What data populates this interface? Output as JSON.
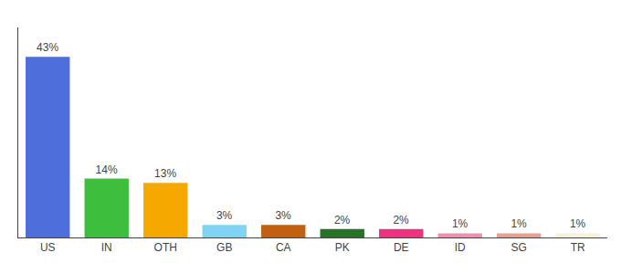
{
  "chart_data": {
    "type": "bar",
    "categories": [
      "US",
      "IN",
      "OTH",
      "GB",
      "CA",
      "PK",
      "DE",
      "ID",
      "SG",
      "TR"
    ],
    "values": [
      43,
      14,
      13,
      3,
      3,
      2,
      2,
      1,
      1,
      1
    ],
    "value_labels": [
      "43%",
      "14%",
      "13%",
      "3%",
      "3%",
      "2%",
      "2%",
      "1%",
      "1%",
      "1%"
    ],
    "colors": [
      "#4d6edb",
      "#3dbf3d",
      "#f5a800",
      "#7fd4f5",
      "#c06010",
      "#267326",
      "#f03080",
      "#f090b0",
      "#e8a090",
      "#f5f0d8"
    ],
    "ylim": [
      0,
      50
    ],
    "data_labels": true,
    "tick_labels": "x",
    "grid": false
  }
}
